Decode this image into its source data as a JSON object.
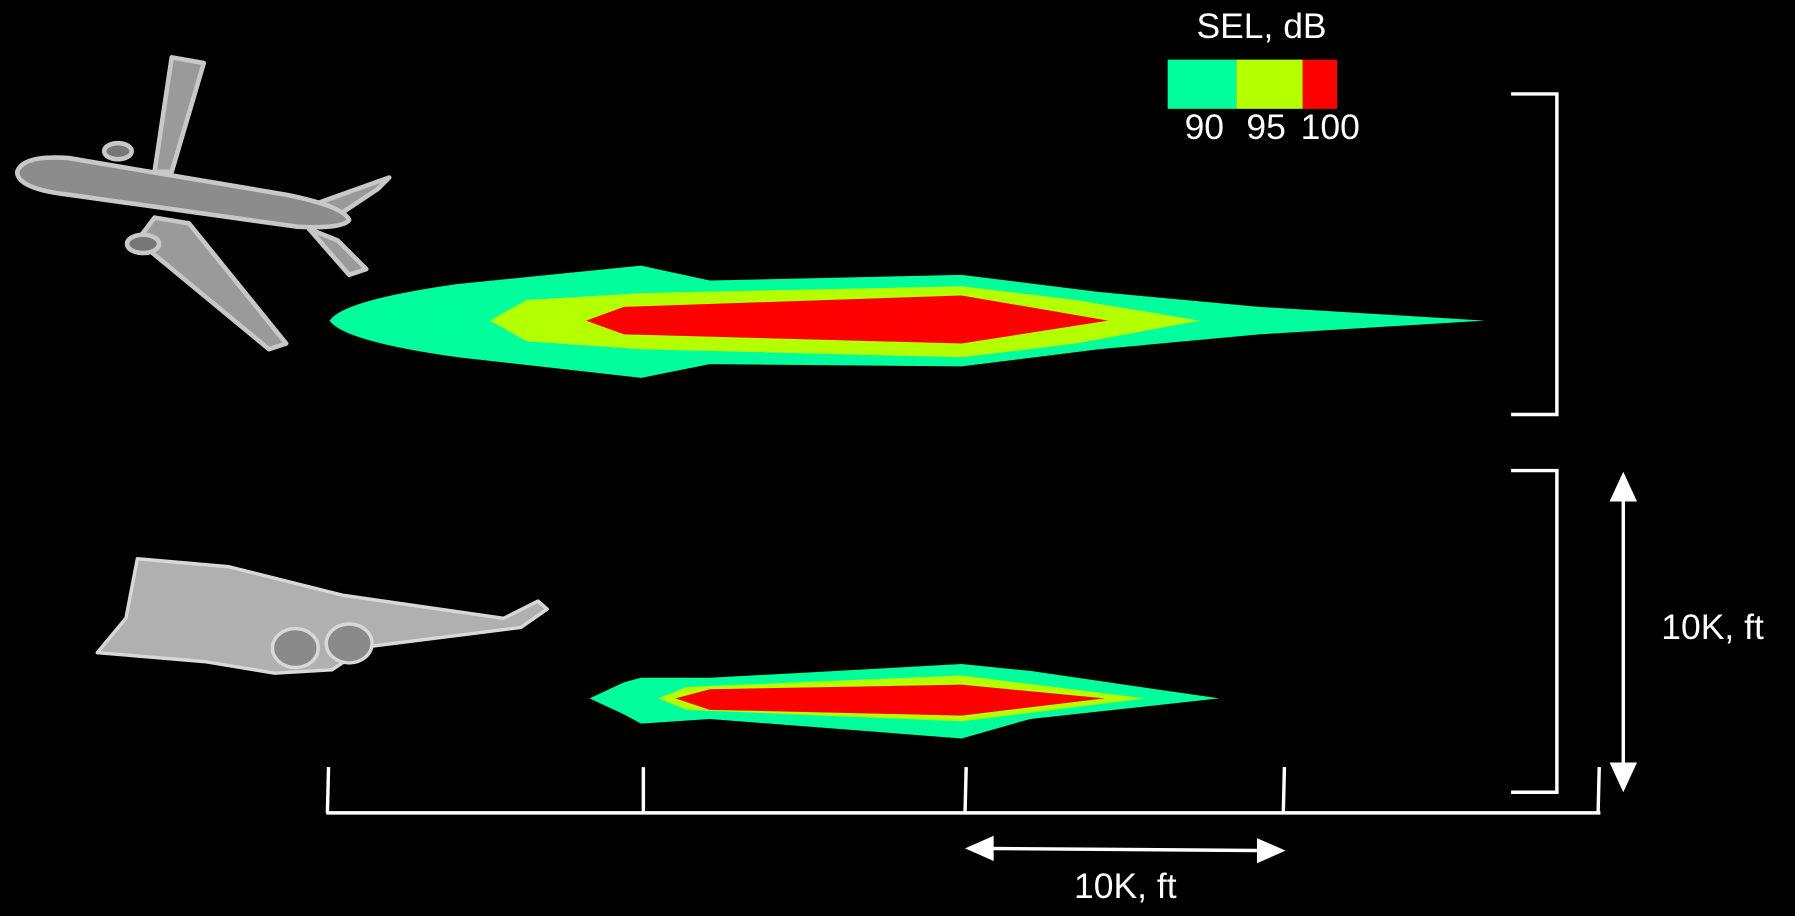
{
  "legend": {
    "title": "SEL, dB",
    "labels": [
      "90",
      "95",
      "100"
    ]
  },
  "scale_vertical": {
    "label": "10K, ft"
  },
  "scale_horizontal": {
    "label": "10K, ft"
  }
}
